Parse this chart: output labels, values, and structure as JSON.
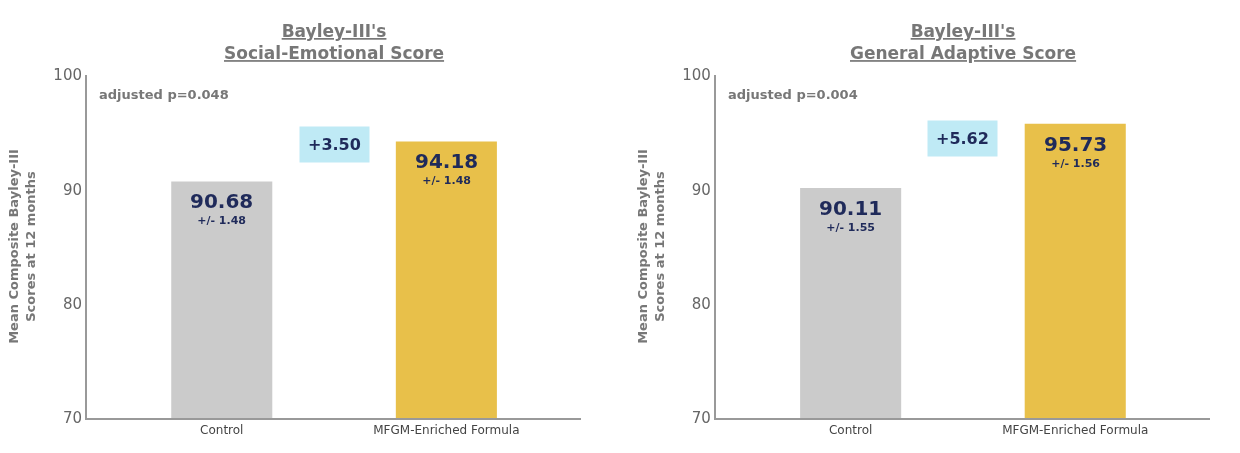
{
  "chart_data": [
    {
      "type": "bar",
      "title": "Bayley-III's\nSocial-Emotional Score",
      "ylabel": "Mean Composite Bayley-III\nScores at 12 months",
      "categories": [
        "Control",
        "MFGM-Enriched Formula"
      ],
      "values": [
        90.68,
        94.18
      ],
      "colors": [
        "#cbcbcb",
        "#e8c04a"
      ],
      "value_labels": [
        "90.68\n+/- 1.48",
        "94.18\n+/- 1.48"
      ],
      "annotations": [
        "adjusted p=0.048",
        "+3.50"
      ],
      "ylim": [
        70,
        100
      ],
      "yticks": [
        70,
        80,
        90,
        100
      ]
    },
    {
      "type": "bar",
      "title": "Bayley-III's\nGeneral Adaptive Score",
      "ylabel": "Mean Composite Bayley-III\nScores at 12 months",
      "categories": [
        "Control",
        "MFGM-Enriched Formula"
      ],
      "values": [
        90.11,
        95.73
      ],
      "colors": [
        "#cbcbcb",
        "#e8c04a"
      ],
      "value_labels": [
        "90.11\n+/- 1.55",
        "95.73\n+/- 1.56"
      ],
      "annotations": [
        "adjusted p=0.004",
        "+5.62"
      ],
      "ylim": [
        70,
        100
      ],
      "yticks": [
        70,
        80,
        90,
        100
      ]
    }
  ]
}
